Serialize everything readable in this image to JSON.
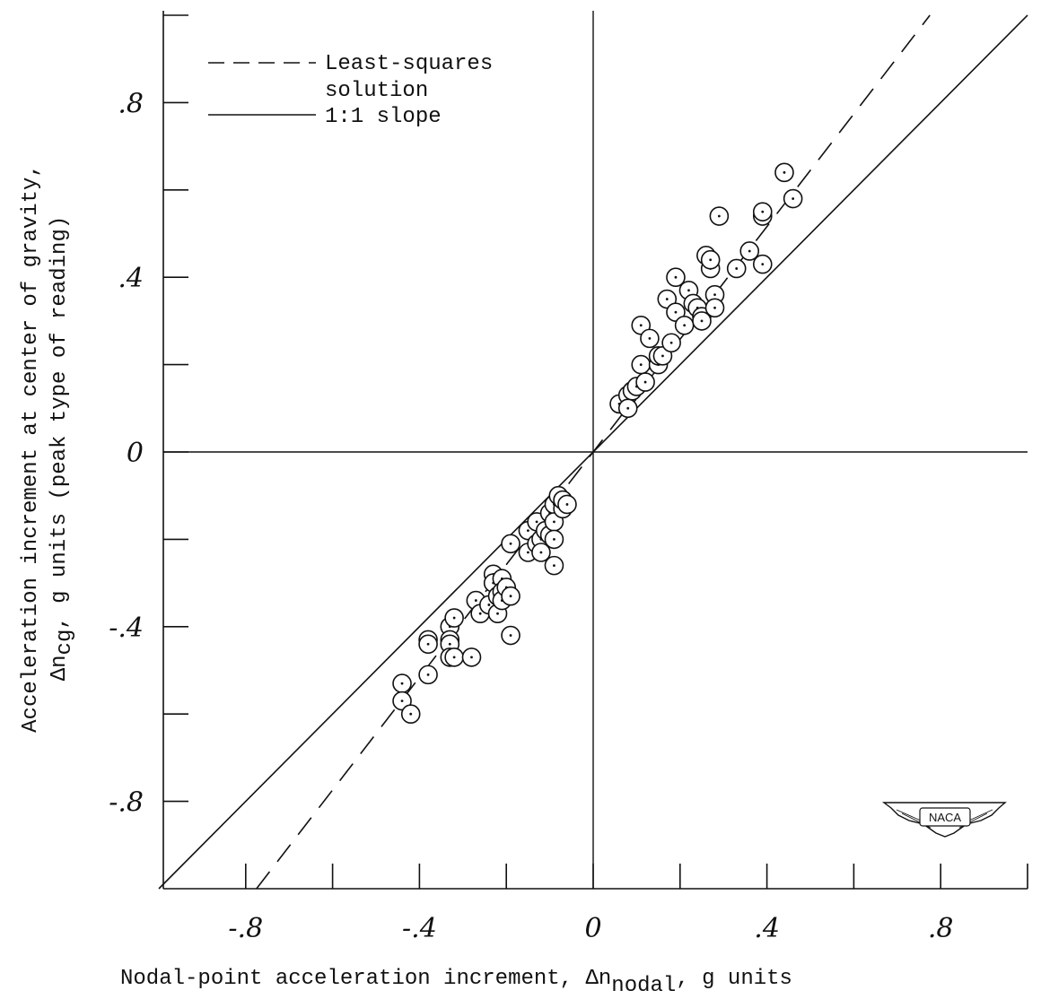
{
  "chart_data": {
    "type": "scatter",
    "xlabel": "Nodal-point acceleration increment, Δn",
    "xlabel_sub": "nodal",
    "xlabel_end": ", g units",
    "ylabel_line1": "Acceleration increment at center of gravity,",
    "ylabel_line2_pre": "Δn",
    "ylabel_line2_sub": "cg",
    "ylabel_line2_post": ", g units (peak type of reading)",
    "xlim": [
      -1.0,
      1.0
    ],
    "ylim": [
      -1.0,
      1.0
    ],
    "x_ticks": [
      -0.8,
      -0.4,
      0,
      0.4,
      0.8
    ],
    "x_tick_labels": [
      "-.8",
      "-.4",
      "0",
      ".4",
      ".8"
    ],
    "y_ticks": [
      -0.8,
      -0.4,
      0,
      0.4,
      0.8
    ],
    "y_tick_labels": [
      "-.8",
      "-.4",
      "0",
      ".4",
      ".8"
    ],
    "minor_tick_step": 0.2,
    "legend": {
      "position": "top-left",
      "entries": [
        {
          "style": "dashed",
          "label_lines": [
            "Least-squares",
            "solution"
          ]
        },
        {
          "style": "solid",
          "label_lines": [
            "1:1 slope"
          ]
        }
      ]
    },
    "lines": [
      {
        "name": "Least-squares solution",
        "style": "dashed",
        "slope": 1.29,
        "intercept": 0
      },
      {
        "name": "1:1 slope",
        "style": "solid",
        "slope": 1.0,
        "intercept": 0
      }
    ],
    "points": [
      [
        0.06,
        0.11
      ],
      [
        0.08,
        0.13
      ],
      [
        0.09,
        0.14
      ],
      [
        0.1,
        0.15
      ],
      [
        0.08,
        0.1
      ],
      [
        0.11,
        0.2
      ],
      [
        0.12,
        0.16
      ],
      [
        0.11,
        0.29
      ],
      [
        0.13,
        0.26
      ],
      [
        0.15,
        0.2
      ],
      [
        0.15,
        0.22
      ],
      [
        0.16,
        0.22
      ],
      [
        0.17,
        0.35
      ],
      [
        0.18,
        0.25
      ],
      [
        0.19,
        0.32
      ],
      [
        0.19,
        0.4
      ],
      [
        0.21,
        0.29
      ],
      [
        0.22,
        0.37
      ],
      [
        0.23,
        0.34
      ],
      [
        0.24,
        0.33
      ],
      [
        0.25,
        0.31
      ],
      [
        0.25,
        0.3
      ],
      [
        0.26,
        0.45
      ],
      [
        0.27,
        0.42
      ],
      [
        0.27,
        0.44
      ],
      [
        0.28,
        0.36
      ],
      [
        0.29,
        0.54
      ],
      [
        0.28,
        0.33
      ],
      [
        0.33,
        0.42
      ],
      [
        0.36,
        0.46
      ],
      [
        0.39,
        0.54
      ],
      [
        0.39,
        0.55
      ],
      [
        0.39,
        0.43
      ],
      [
        0.44,
        0.64
      ],
      [
        0.46,
        0.58
      ],
      [
        -0.44,
        -0.53
      ],
      [
        -0.44,
        -0.57
      ],
      [
        -0.42,
        -0.6
      ],
      [
        -0.38,
        -0.51
      ],
      [
        -0.38,
        -0.43
      ],
      [
        -0.38,
        -0.44
      ],
      [
        -0.33,
        -0.4
      ],
      [
        -0.33,
        -0.43
      ],
      [
        -0.33,
        -0.44
      ],
      [
        -0.33,
        -0.47
      ],
      [
        -0.32,
        -0.38
      ],
      [
        -0.32,
        -0.47
      ],
      [
        -0.28,
        -0.47
      ],
      [
        -0.27,
        -0.34
      ],
      [
        -0.26,
        -0.37
      ],
      [
        -0.24,
        -0.35
      ],
      [
        -0.23,
        -0.28
      ],
      [
        -0.23,
        -0.3
      ],
      [
        -0.22,
        -0.33
      ],
      [
        -0.22,
        -0.37
      ],
      [
        -0.21,
        -0.29
      ],
      [
        -0.21,
        -0.32
      ],
      [
        -0.21,
        -0.34
      ],
      [
        -0.2,
        -0.31
      ],
      [
        -0.19,
        -0.33
      ],
      [
        -0.19,
        -0.21
      ],
      [
        -0.19,
        -0.42
      ],
      [
        -0.15,
        -0.18
      ],
      [
        -0.15,
        -0.23
      ],
      [
        -0.13,
        -0.16
      ],
      [
        -0.13,
        -0.21
      ],
      [
        -0.12,
        -0.2
      ],
      [
        -0.12,
        -0.23
      ],
      [
        -0.11,
        -0.18
      ],
      [
        -0.1,
        -0.14
      ],
      [
        -0.1,
        -0.19
      ],
      [
        -0.09,
        -0.12
      ],
      [
        -0.09,
        -0.16
      ],
      [
        -0.09,
        -0.2
      ],
      [
        -0.09,
        -0.26
      ],
      [
        -0.08,
        -0.1
      ],
      [
        -0.07,
        -0.13
      ],
      [
        -0.07,
        -0.11
      ],
      [
        -0.06,
        -0.12
      ]
    ],
    "grid": false
  },
  "logo": {
    "text": "NACA"
  }
}
